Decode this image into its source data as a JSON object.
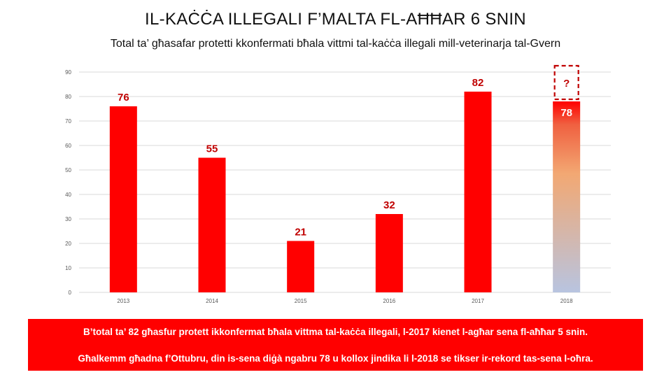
{
  "header": {
    "title": "IL-KAĊĊA ILLEGALI F’MALTA FL-AĦĦAR 6 SNIN",
    "subtitle": "Total ta’ għasafar protetti kkonfermati bħala vittmi tal-kaċċa illegali mill-veterinarja tal-Gvern"
  },
  "colors": {
    "bar": "#ff0000",
    "label": "#c00000",
    "grid": "#d9d9d9",
    "gradient_bottom": "#b8c4e0",
    "gradient_mid": "#f2a873"
  },
  "chart_data": {
    "type": "bar",
    "title": "IL-KAĊĊA ILLEGALI F’MALTA FL-AĦĦAR 6 SNIN",
    "subtitle": "Total ta’ għasafar protetti kkonfermati bħala vittmi tal-kaċċa illegali mill-veterinarja tal-Gvern",
    "categories": [
      "2013",
      "2014",
      "2015",
      "2016",
      "2017",
      "2018"
    ],
    "values": [
      76,
      55,
      21,
      32,
      82,
      78
    ],
    "value_labels": [
      "76",
      "55",
      "21",
      "32",
      "82",
      "78"
    ],
    "ylim": [
      0,
      90
    ],
    "yticks": [
      0,
      10,
      20,
      30,
      40,
      50,
      60,
      70,
      80,
      90
    ],
    "grid": true,
    "legend": "none",
    "annotation": {
      "category": "2018",
      "text": "?",
      "style": "dashed-box"
    },
    "highlight": {
      "category": "2018",
      "fill": "gradient"
    }
  },
  "banner": {
    "line1": "B’total ta’ 82 għasfur protett ikkonfermat bħala vittma tal-kaċċa illegali, l-2017 kienet l-agħar sena fl-aħħar 5 snin.",
    "line2": "Għalkemm għadna f’Ottubru, din is-sena diġà ngabru 78 u kollox jindika li l-2018 se tikser ir-rekord tas-sena l-oħra."
  }
}
